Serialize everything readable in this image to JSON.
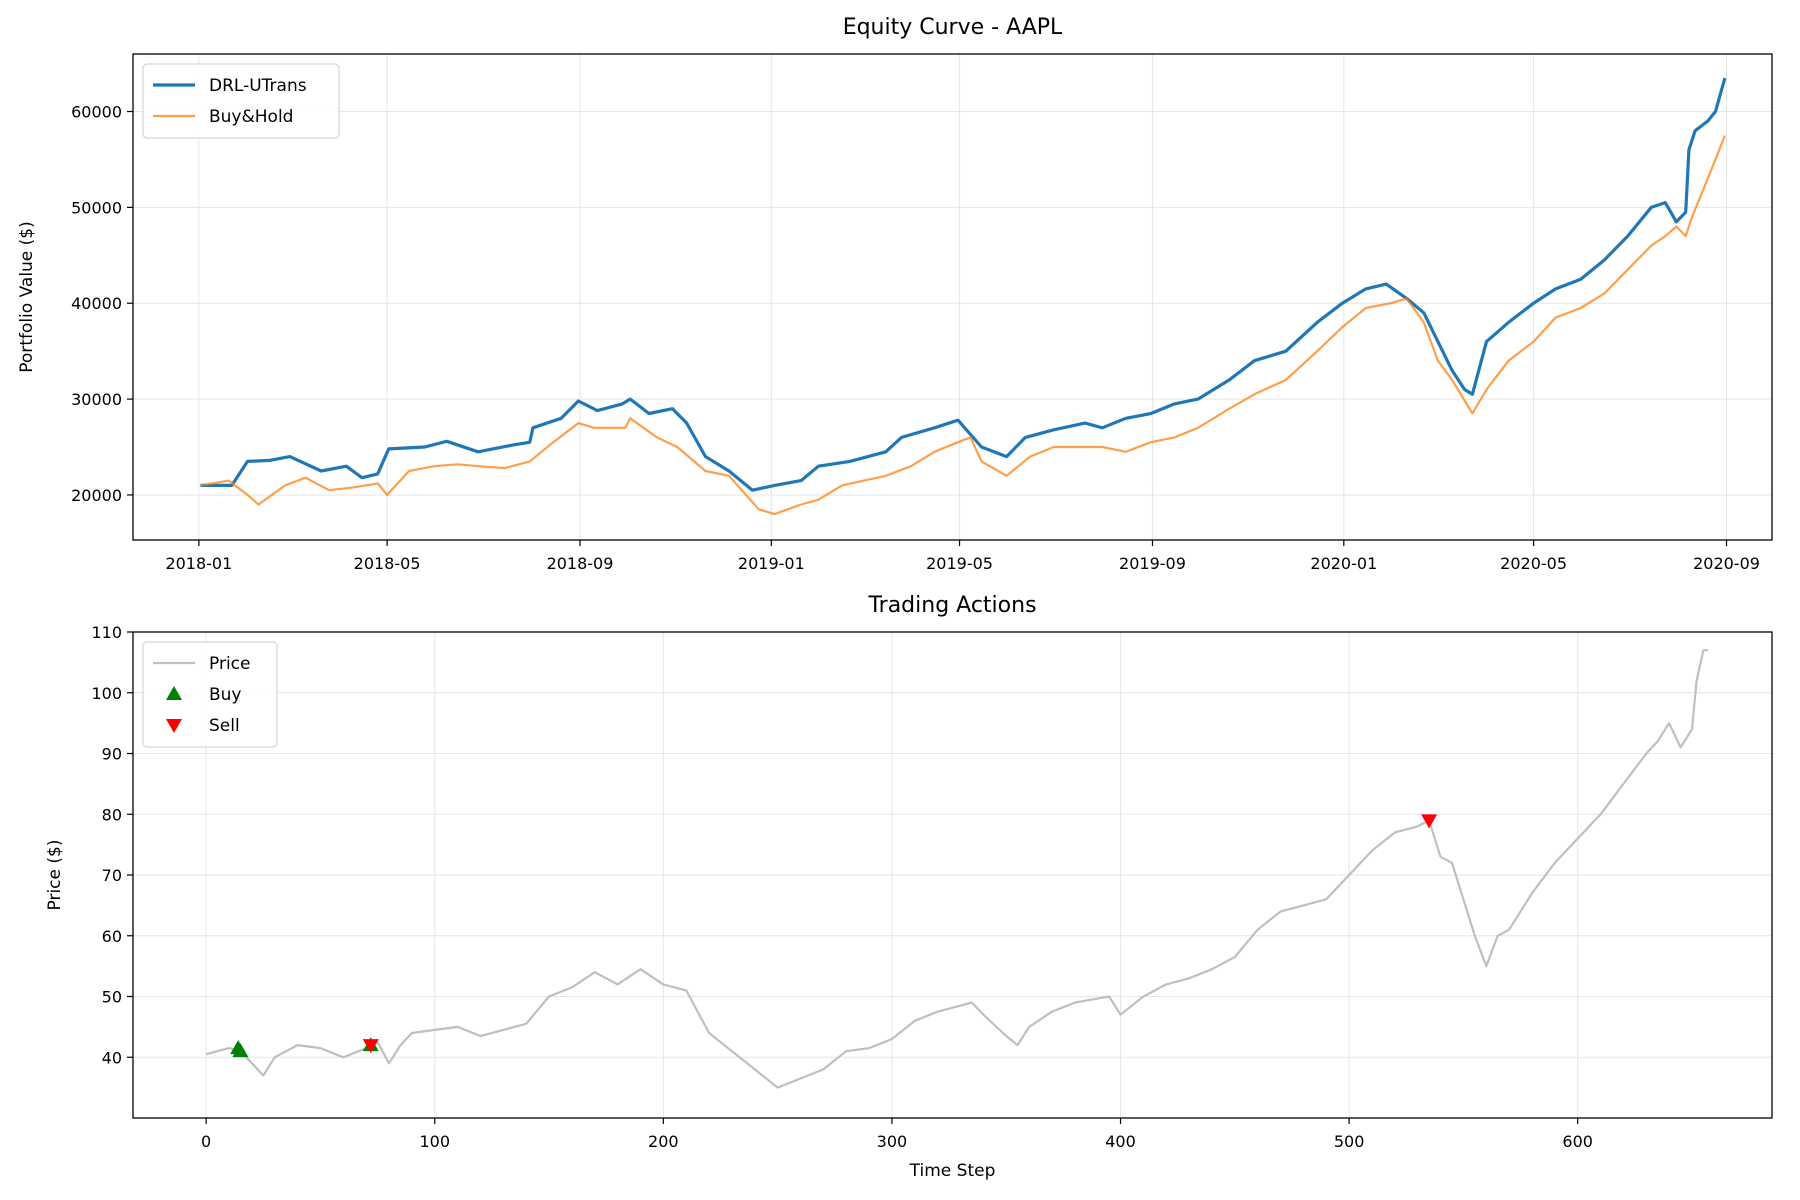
{
  "chart_data": [
    {
      "type": "line",
      "title": "Equity Curve - AAPL",
      "xlabel": "",
      "ylabel": "Portfolio Value ($)",
      "xlim": [
        "2017-11-20",
        "2020-09-30"
      ],
      "ylim": [
        15300,
        66000
      ],
      "grid": true,
      "legend_position": "upper-left",
      "x_ticks": [
        "2018-01",
        "2018-05",
        "2018-09",
        "2019-01",
        "2019-05",
        "2019-09",
        "2020-01",
        "2020-05",
        "2020-09"
      ],
      "y_ticks": [
        20000,
        30000,
        40000,
        50000,
        60000
      ],
      "series": [
        {
          "name": "DRL-UTrans",
          "color": "#1f77b4",
          "points": [
            [
              "2018-01-02",
              21000
            ],
            [
              "2018-01-22",
              21000
            ],
            [
              "2018-02-01",
              23500
            ],
            [
              "2018-02-15",
              23600
            ],
            [
              "2018-02-28",
              24000
            ],
            [
              "2018-03-20",
              22500
            ],
            [
              "2018-04-05",
              23000
            ],
            [
              "2018-04-15",
              21800
            ],
            [
              "2018-04-25",
              22200
            ],
            [
              "2018-05-02",
              24800
            ],
            [
              "2018-05-25",
              25000
            ],
            [
              "2018-06-08",
              25600
            ],
            [
              "2018-06-28",
              24500
            ],
            [
              "2018-07-20",
              25200
            ],
            [
              "2018-07-31",
              25500
            ],
            [
              "2018-08-02",
              27000
            ],
            [
              "2018-08-20",
              28000
            ],
            [
              "2018-08-31",
              29800
            ],
            [
              "2018-09-12",
              28800
            ],
            [
              "2018-09-28",
              29500
            ],
            [
              "2018-10-03",
              30000
            ],
            [
              "2018-10-15",
              28500
            ],
            [
              "2018-10-30",
              29000
            ],
            [
              "2018-11-08",
              27500
            ],
            [
              "2018-11-20",
              24000
            ],
            [
              "2018-12-05",
              22500
            ],
            [
              "2018-12-20",
              20500
            ],
            [
              "2019-01-03",
              21000
            ],
            [
              "2019-01-20",
              21500
            ],
            [
              "2019-01-31",
              23000
            ],
            [
              "2019-02-20",
              23500
            ],
            [
              "2019-03-15",
              24500
            ],
            [
              "2019-03-25",
              26000
            ],
            [
              "2019-04-15",
              27000
            ],
            [
              "2019-04-30",
              27800
            ],
            [
              "2019-05-15",
              25000
            ],
            [
              "2019-05-31",
              24000
            ],
            [
              "2019-06-12",
              26000
            ],
            [
              "2019-06-30",
              26800
            ],
            [
              "2019-07-20",
              27500
            ],
            [
              "2019-07-31",
              27000
            ],
            [
              "2019-08-15",
              28000
            ],
            [
              "2019-08-31",
              28500
            ],
            [
              "2019-09-15",
              29500
            ],
            [
              "2019-09-30",
              30000
            ],
            [
              "2019-10-20",
              32000
            ],
            [
              "2019-11-05",
              34000
            ],
            [
              "2019-11-25",
              35000
            ],
            [
              "2019-12-15",
              38000
            ],
            [
              "2019-12-31",
              40000
            ],
            [
              "2020-01-15",
              41500
            ],
            [
              "2020-01-28",
              42000
            ],
            [
              "2020-02-10",
              40500
            ],
            [
              "2020-02-21",
              39000
            ],
            [
              "2020-03-01",
              36000
            ],
            [
              "2020-03-10",
              33000
            ],
            [
              "2020-03-18",
              31000
            ],
            [
              "2020-03-23",
              30500
            ],
            [
              "2020-04-01",
              36000
            ],
            [
              "2020-04-15",
              38000
            ],
            [
              "2020-05-01",
              40000
            ],
            [
              "2020-05-15",
              41500
            ],
            [
              "2020-05-31",
              42500
            ],
            [
              "2020-06-15",
              44500
            ],
            [
              "2020-06-30",
              47000
            ],
            [
              "2020-07-15",
              50000
            ],
            [
              "2020-07-24",
              50500
            ],
            [
              "2020-07-31",
              48500
            ],
            [
              "2020-08-06",
              49500
            ],
            [
              "2020-08-08",
              56000
            ],
            [
              "2020-08-12",
              58000
            ],
            [
              "2020-08-20",
              59000
            ],
            [
              "2020-08-25",
              60000
            ],
            [
              "2020-08-31",
              63500
            ]
          ]
        },
        {
          "name": "Buy&Hold",
          "color": "#ff7f0e",
          "points": [
            [
              "2018-01-02",
              21000
            ],
            [
              "2018-01-20",
              21500
            ],
            [
              "2018-02-01",
              20000
            ],
            [
              "2018-02-08",
              19000
            ],
            [
              "2018-02-25",
              21000
            ],
            [
              "2018-03-10",
              21800
            ],
            [
              "2018-03-25",
              20500
            ],
            [
              "2018-04-10",
              20800
            ],
            [
              "2018-04-25",
              21200
            ],
            [
              "2018-05-01",
              20000
            ],
            [
              "2018-05-15",
              22500
            ],
            [
              "2018-05-31",
              23000
            ],
            [
              "2018-06-15",
              23200
            ],
            [
              "2018-06-28",
              23000
            ],
            [
              "2018-07-15",
              22800
            ],
            [
              "2018-07-31",
              23500
            ],
            [
              "2018-08-15",
              25500
            ],
            [
              "2018-08-31",
              27500
            ],
            [
              "2018-09-10",
              27000
            ],
            [
              "2018-09-30",
              27000
            ],
            [
              "2018-10-03",
              28000
            ],
            [
              "2018-10-20",
              26000
            ],
            [
              "2018-11-02",
              25000
            ],
            [
              "2018-11-20",
              22500
            ],
            [
              "2018-12-05",
              22000
            ],
            [
              "2018-12-24",
              18500
            ],
            [
              "2019-01-03",
              18000
            ],
            [
              "2019-01-20",
              19000
            ],
            [
              "2019-01-31",
              19500
            ],
            [
              "2019-02-15",
              21000
            ],
            [
              "2019-03-15",
              22000
            ],
            [
              "2019-03-31",
              23000
            ],
            [
              "2019-04-15",
              24500
            ],
            [
              "2019-04-30",
              25500
            ],
            [
              "2019-05-08",
              26000
            ],
            [
              "2019-05-15",
              23500
            ],
            [
              "2019-05-31",
              22000
            ],
            [
              "2019-06-15",
              24000
            ],
            [
              "2019-06-30",
              25000
            ],
            [
              "2019-07-31",
              25000
            ],
            [
              "2019-08-15",
              24500
            ],
            [
              "2019-08-31",
              25500
            ],
            [
              "2019-09-15",
              26000
            ],
            [
              "2019-09-30",
              27000
            ],
            [
              "2019-10-20",
              29000
            ],
            [
              "2019-11-05",
              30500
            ],
            [
              "2019-11-25",
              32000
            ],
            [
              "2019-12-15",
              35000
            ],
            [
              "2019-12-31",
              37500
            ],
            [
              "2020-01-15",
              39500
            ],
            [
              "2020-01-31",
              40000
            ],
            [
              "2020-02-10",
              40500
            ],
            [
              "2020-02-21",
              38000
            ],
            [
              "2020-03-01",
              34000
            ],
            [
              "2020-03-10",
              32000
            ],
            [
              "2020-03-23",
              28500
            ],
            [
              "2020-04-01",
              31000
            ],
            [
              "2020-04-15",
              34000
            ],
            [
              "2020-05-01",
              36000
            ],
            [
              "2020-05-15",
              38500
            ],
            [
              "2020-05-31",
              39500
            ],
            [
              "2020-06-15",
              41000
            ],
            [
              "2020-06-30",
              43500
            ],
            [
              "2020-07-15",
              46000
            ],
            [
              "2020-07-24",
              47000
            ],
            [
              "2020-07-31",
              48000
            ],
            [
              "2020-08-06",
              47000
            ],
            [
              "2020-08-10",
              49000
            ],
            [
              "2020-08-15",
              51000
            ],
            [
              "2020-08-25",
              55000
            ],
            [
              "2020-08-31",
              57500
            ]
          ]
        }
      ]
    },
    {
      "type": "line",
      "title": "Trading Actions",
      "xlabel": "Time Step",
      "ylabel": "Price ($)",
      "xlim": [
        -32,
        685
      ],
      "ylim": [
        30,
        110
      ],
      "grid": true,
      "legend_position": "upper-left",
      "x_ticks": [
        0,
        100,
        200,
        300,
        400,
        500,
        600
      ],
      "y_ticks": [
        40,
        50,
        60,
        70,
        80,
        90,
        100,
        110
      ],
      "series": [
        {
          "name": "Price",
          "color": "#bfbfbf",
          "points": [
            [
              0,
              40.5
            ],
            [
              10,
              41.5
            ],
            [
              15,
              41
            ],
            [
              20,
              39
            ],
            [
              25,
              37
            ],
            [
              30,
              40
            ],
            [
              40,
              42
            ],
            [
              50,
              41.5
            ],
            [
              60,
              40
            ],
            [
              70,
              41.5
            ],
            [
              75,
              42.5
            ],
            [
              80,
              39
            ],
            [
              85,
              42
            ],
            [
              90,
              44
            ],
            [
              100,
              44.5
            ],
            [
              110,
              45
            ],
            [
              120,
              43.5
            ],
            [
              130,
              44.5
            ],
            [
              140,
              45.5
            ],
            [
              150,
              50
            ],
            [
              160,
              51.5
            ],
            [
              170,
              54
            ],
            [
              180,
              52
            ],
            [
              190,
              54.5
            ],
            [
              200,
              52
            ],
            [
              210,
              51
            ],
            [
              220,
              44
            ],
            [
              230,
              41
            ],
            [
              240,
              38
            ],
            [
              250,
              35
            ],
            [
              260,
              36.5
            ],
            [
              270,
              38
            ],
            [
              280,
              41
            ],
            [
              290,
              41.5
            ],
            [
              300,
              43
            ],
            [
              310,
              46
            ],
            [
              320,
              47.5
            ],
            [
              335,
              49
            ],
            [
              340,
              47
            ],
            [
              350,
              43.5
            ],
            [
              355,
              42
            ],
            [
              360,
              45
            ],
            [
              370,
              47.5
            ],
            [
              380,
              49
            ],
            [
              395,
              50
            ],
            [
              400,
              47
            ],
            [
              410,
              50
            ],
            [
              420,
              52
            ],
            [
              430,
              53
            ],
            [
              440,
              54.5
            ],
            [
              450,
              56.5
            ],
            [
              460,
              61
            ],
            [
              470,
              64
            ],
            [
              480,
              65
            ],
            [
              490,
              66
            ],
            [
              500,
              70
            ],
            [
              510,
              74
            ],
            [
              520,
              77
            ],
            [
              530,
              78
            ],
            [
              535,
              79
            ],
            [
              540,
              73
            ],
            [
              545,
              72
            ],
            [
              550,
              66
            ],
            [
              555,
              60
            ],
            [
              560,
              55
            ],
            [
              565,
              60
            ],
            [
              570,
              61
            ],
            [
              580,
              67
            ],
            [
              590,
              72
            ],
            [
              600,
              76
            ],
            [
              610,
              80
            ],
            [
              620,
              85
            ],
            [
              630,
              90
            ],
            [
              635,
              92
            ],
            [
              640,
              95
            ],
            [
              645,
              91
            ],
            [
              650,
              94
            ],
            [
              652,
              102
            ],
            [
              655,
              107
            ],
            [
              657,
              107
            ]
          ]
        }
      ],
      "markers": [
        {
          "name": "Buy",
          "symbol": "triangle-up",
          "color": "#008000",
          "points": [
            [
              14,
              41.5
            ],
            [
              15,
              41
            ],
            [
              72,
              42
            ]
          ]
        },
        {
          "name": "Sell",
          "symbol": "triangle-down",
          "color": "#ff0000",
          "points": [
            [
              72,
              42
            ],
            [
              535,
              79
            ]
          ]
        }
      ]
    }
  ]
}
